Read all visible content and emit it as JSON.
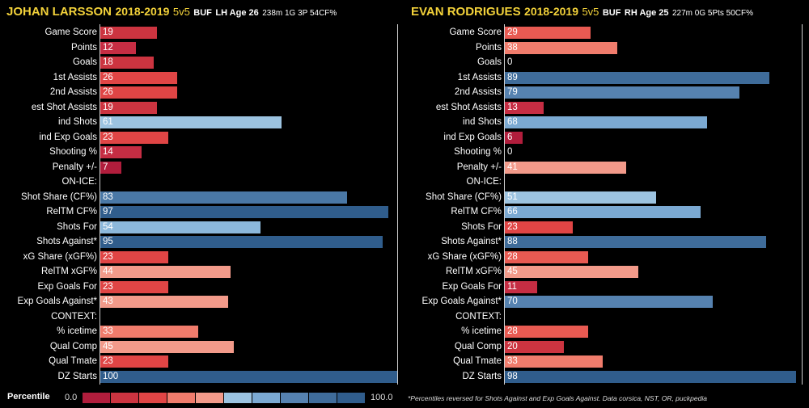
{
  "chart_data": [
    {
      "type": "bar",
      "player": "JOHAN LARSSON",
      "season": "2018-2019",
      "strength": "5v5",
      "team": "BUF",
      "hand_age": "LH Age 26",
      "summary": "238m 1G 3P 54CF%",
      "xlim": [
        0,
        100
      ],
      "rows": [
        {
          "label": "Game Score",
          "value": 19,
          "color": "#cc3440"
        },
        {
          "label": "Points",
          "value": 12,
          "color": "#c62d43"
        },
        {
          "label": "Goals",
          "value": 18,
          "color": "#cc3440"
        },
        {
          "label": "1st Assists",
          "value": 26,
          "color": "#e04545"
        },
        {
          "label": "2nd Assists",
          "value": 26,
          "color": "#e04545"
        },
        {
          "label": "est Shot Assists",
          "value": 19,
          "color": "#cc3440"
        },
        {
          "label": "ind Shots",
          "value": 61,
          "color": "#9cc3e0"
        },
        {
          "label": "ind Exp Goals",
          "value": 23,
          "color": "#e04545"
        },
        {
          "label": "Shooting %",
          "value": 14,
          "color": "#c62d43"
        },
        {
          "label": "Penalty +/-",
          "value": 7,
          "color": "#b11d3c"
        },
        {
          "label": "ON-ICE:",
          "value": null,
          "color": ""
        },
        {
          "label": "Shot Share (CF%)",
          "value": 83,
          "color": "#4a78a6"
        },
        {
          "label": "RelTM CF%",
          "value": 97,
          "color": "#305d8c"
        },
        {
          "label": "Shots For",
          "value": 54,
          "color": "#8cb8db"
        },
        {
          "label": "Shots Against*",
          "value": 95,
          "color": "#305d8c"
        },
        {
          "label": "xG Share (xGF%)",
          "value": 23,
          "color": "#e04545"
        },
        {
          "label": "RelTM xGF%",
          "value": 44,
          "color": "#f29a8a"
        },
        {
          "label": "Exp Goals For",
          "value": 23,
          "color": "#e04545"
        },
        {
          "label": "Exp Goals Against*",
          "value": 43,
          "color": "#f29a8a"
        },
        {
          "label": "CONTEXT:",
          "value": null,
          "color": ""
        },
        {
          "label": "% icetime",
          "value": 33,
          "color": "#f07c6c"
        },
        {
          "label": "Qual Comp",
          "value": 45,
          "color": "#f29a8a"
        },
        {
          "label": "Qual Tmate",
          "value": 23,
          "color": "#e04545"
        },
        {
          "label": "DZ Starts",
          "value": 100,
          "color": "#305d8c"
        }
      ]
    },
    {
      "type": "bar",
      "player": "EVAN RODRIGUES",
      "season": "2018-2019",
      "strength": "5v5",
      "team": "BUF",
      "hand_age": "RH Age 25",
      "summary": "227m 0G 5Pts 50CF%",
      "xlim": [
        0,
        100
      ],
      "rows": [
        {
          "label": "Game Score",
          "value": 29,
          "color": "#e85a52"
        },
        {
          "label": "Points",
          "value": 38,
          "color": "#f07c6c"
        },
        {
          "label": "Goals",
          "value": 0,
          "color": "#b11d3c"
        },
        {
          "label": "1st Assists",
          "value": 89,
          "color": "#3f6c9a"
        },
        {
          "label": "2nd Assists",
          "value": 79,
          "color": "#5682b0"
        },
        {
          "label": "est Shot Assists",
          "value": 13,
          "color": "#c62d43"
        },
        {
          "label": "ind Shots",
          "value": 68,
          "color": "#7ba9d2"
        },
        {
          "label": "ind Exp Goals",
          "value": 6,
          "color": "#b11d3c"
        },
        {
          "label": "Shooting %",
          "value": 0,
          "color": "#b11d3c"
        },
        {
          "label": "Penalty +/-",
          "value": 41,
          "color": "#f29a8a"
        },
        {
          "label": "ON-ICE:",
          "value": null,
          "color": ""
        },
        {
          "label": "Shot Share (CF%)",
          "value": 51,
          "color": "#9cc3e0"
        },
        {
          "label": "RelTM CF%",
          "value": 66,
          "color": "#7ba9d2"
        },
        {
          "label": "Shots For",
          "value": 23,
          "color": "#e04545"
        },
        {
          "label": "Shots Against*",
          "value": 88,
          "color": "#3f6c9a"
        },
        {
          "label": "xG Share (xGF%)",
          "value": 28,
          "color": "#e85a52"
        },
        {
          "label": "RelTM xGF%",
          "value": 45,
          "color": "#f29a8a"
        },
        {
          "label": "Exp Goals For",
          "value": 11,
          "color": "#c62d43"
        },
        {
          "label": "Exp Goals Against*",
          "value": 70,
          "color": "#5682b0"
        },
        {
          "label": "CONTEXT:",
          "value": null,
          "color": ""
        },
        {
          "label": "% icetime",
          "value": 28,
          "color": "#e85a52"
        },
        {
          "label": "Qual Comp",
          "value": 20,
          "color": "#cc3440"
        },
        {
          "label": "Qual Tmate",
          "value": 33,
          "color": "#f07c6c"
        },
        {
          "label": "DZ Starts",
          "value": 98,
          "color": "#305d8c"
        }
      ]
    }
  ],
  "legend": {
    "title": "Percentile",
    "min_label": "0.0",
    "max_label": "100.0",
    "colors": [
      "#b11d3c",
      "#cc3440",
      "#e04545",
      "#f07c6c",
      "#f29a8a",
      "#9cc3e0",
      "#7ba9d2",
      "#5682b0",
      "#3f6c9a",
      "#305d8c"
    ]
  },
  "footnote": "*Percentiles reversed for Shots Against and Exp Goals Against. Data corsica, NST, OR, puckpedia"
}
